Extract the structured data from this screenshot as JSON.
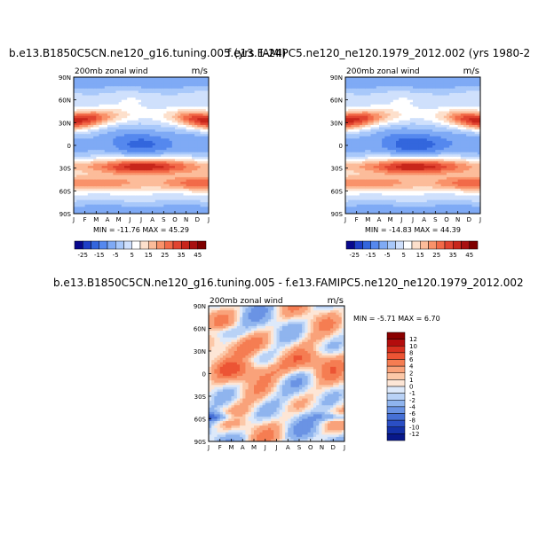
{
  "chart_data": [
    {
      "type": "heatmap",
      "title": "b.e13.B1850C5CN.ne120_g16.tuning.005 (yrs 1-24)",
      "subtitle_left": "200mb zonal wind",
      "units": "m/s",
      "min_max_text": "MIN = -11.76  MAX =  45.29",
      "x_ticks": [
        "J",
        "F",
        "M",
        "A",
        "M",
        "J",
        "J",
        "A",
        "S",
        "O",
        "N",
        "D",
        "J"
      ],
      "y_ticks": [
        "90N",
        "60N",
        "30N",
        "0",
        "30S",
        "60S",
        "90S"
      ],
      "ylim": [
        -90,
        90
      ],
      "jets": [
        {
          "lat": 30,
          "peak_by_month": [
            42,
            40,
            36,
            28,
            20,
            14,
            10,
            10,
            14,
            22,
            34,
            42,
            42
          ]
        },
        {
          "lat": -30,
          "peak_by_month": [
            22,
            24,
            26,
            30,
            36,
            42,
            45,
            44,
            40,
            34,
            28,
            24,
            22
          ]
        },
        {
          "lat": -48,
          "peak_by_month": [
            30,
            30,
            29,
            27,
            24,
            22,
            22,
            23,
            25,
            28,
            30,
            30,
            30
          ]
        }
      ],
      "colorbar": {
        "labels": [
          "-25",
          "-15",
          "-5",
          "5",
          "15",
          "25",
          "35",
          "45"
        ],
        "levels": [
          -30,
          -25,
          -20,
          -15,
          -10,
          -5,
          0,
          5,
          10,
          15,
          20,
          25,
          30,
          35,
          40,
          45,
          50
        ],
        "colors": [
          "#08088c",
          "#1f3fc8",
          "#3366dd",
          "#5588ee",
          "#7faaf5",
          "#a8c8fa",
          "#cfe0fc",
          "#ffffff",
          "#fde0cc",
          "#fcbc9a",
          "#f9926a",
          "#f26a48",
          "#e14430",
          "#c8261b",
          "#a81010",
          "#7f0000"
        ]
      }
    },
    {
      "type": "heatmap",
      "title": "f.e13.FAMIPC5.ne120_ne120.1979_2012.002 (yrs 1980-2",
      "subtitle_left": "200mb zonal wind",
      "units": "m/s",
      "min_max_text": "MIN = -14.83  MAX =  44.39",
      "x_ticks": [
        "J",
        "F",
        "M",
        "A",
        "M",
        "J",
        "J",
        "A",
        "S",
        "O",
        "N",
        "D",
        "J"
      ],
      "y_ticks": [
        "90N",
        "60N",
        "30N",
        "0",
        "30S",
        "60S",
        "90S"
      ],
      "ylim": [
        -90,
        90
      ],
      "colorbar": {
        "labels": [
          "-25",
          "-15",
          "-5",
          "5",
          "15",
          "25",
          "35",
          "45"
        ]
      }
    },
    {
      "type": "heatmap",
      "title": "b.e13.B1850C5CN.ne120_g16.tuning.005 - f.e13.FAMIPC5.ne120_ne120.1979_2012.002",
      "subtitle_left": "200mb zonal wind",
      "units": "m/s",
      "min_max_text": "MIN =  -5.71  MAX =   6.70",
      "x_ticks": [
        "J",
        "F",
        "M",
        "A",
        "M",
        "J",
        "J",
        "A",
        "S",
        "O",
        "N",
        "D",
        "J"
      ],
      "y_ticks": [
        "90N",
        "60N",
        "30N",
        "0",
        "30S",
        "60S",
        "90S"
      ],
      "ylim": [
        -90,
        90
      ],
      "colorbar": {
        "labels": [
          "12",
          "10",
          "8",
          "6",
          "4",
          "2",
          "1",
          "0",
          "-1",
          "-2",
          "-4",
          "-6",
          "-8",
          "-10",
          "-12"
        ],
        "levels": [
          14,
          12,
          10,
          8,
          6,
          4,
          2,
          1,
          0,
          -1,
          -2,
          -4,
          -6,
          -8,
          -10,
          -12,
          -14
        ],
        "colors": [
          "#8b0000",
          "#b30d0d",
          "#d7301f",
          "#ec5434",
          "#f57d52",
          "#f9a27a",
          "#fcc8a8",
          "#fde6d6",
          "#dde9fa",
          "#b9d2f6",
          "#8fb4ee",
          "#6a93e4",
          "#4670d6",
          "#2a4ec4",
          "#1431a8",
          "#08188a"
        ]
      }
    }
  ]
}
